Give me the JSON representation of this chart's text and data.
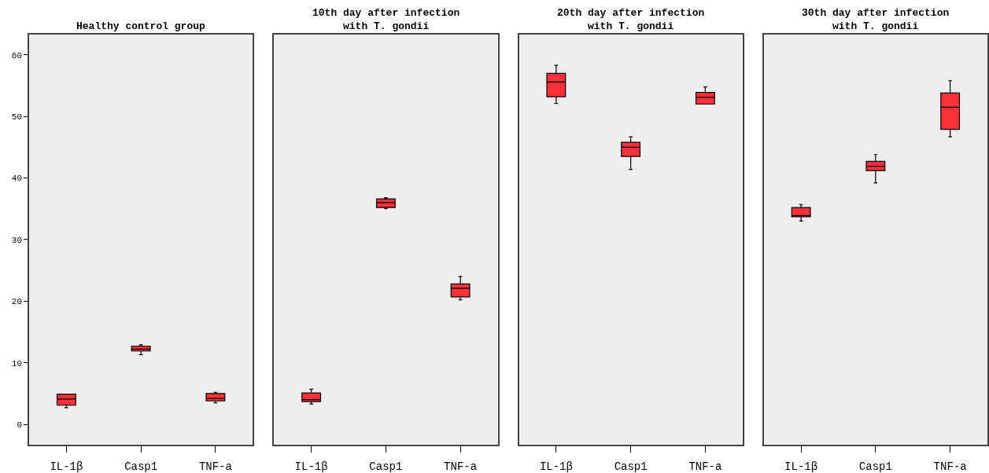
{
  "chart_data": [
    {
      "type": "box",
      "title": "Healthy control group",
      "categories": [
        "IL-1β",
        "Casp1",
        "TNF-a"
      ],
      "color": "#f8313a",
      "ylim": [
        -3.3,
        63.3
      ],
      "yticks": [
        0,
        10,
        20,
        30,
        40,
        50,
        60
      ],
      "grid": false,
      "boxes": [
        {
          "low": 2.7,
          "q1": 3.1,
          "median": 4.1,
          "q3": 4.9,
          "high": 4.9
        },
        {
          "low": 11.3,
          "q1": 11.9,
          "median": 12.2,
          "q3": 12.7,
          "high": 12.9
        },
        {
          "low": 3.5,
          "q1": 3.8,
          "median": 4.2,
          "q3": 5.0,
          "high": 5.2
        }
      ]
    },
    {
      "type": "box",
      "title": "10th day after infection\nwith T. gondii",
      "categories": [
        "IL-1β",
        "Casp1",
        "TNF-a"
      ],
      "color": "#f8313a",
      "ylim": [
        -3.3,
        63.3
      ],
      "yticks": [
        0,
        10,
        20,
        30,
        40,
        50,
        60
      ],
      "grid": false,
      "tick_labels": "x",
      "boxes": [
        {
          "low": 3.3,
          "q1": 3.7,
          "median": 4.0,
          "q3": 5.1,
          "high": 5.7
        },
        {
          "low": 35.0,
          "q1": 35.2,
          "median": 36.0,
          "q3": 36.6,
          "high": 36.8
        },
        {
          "low": 20.2,
          "q1": 20.7,
          "median": 22.1,
          "q3": 22.8,
          "high": 24.0
        }
      ]
    },
    {
      "type": "box",
      "title": "20th day after infection\nwith T. gondii",
      "categories": [
        "IL-1β",
        "Casp1",
        "TNF-a"
      ],
      "color": "#f8313a",
      "ylim": [
        -3.3,
        63.3
      ],
      "yticks": [
        0,
        10,
        20,
        30,
        40,
        50,
        60
      ],
      "grid": false,
      "tick_labels": "x",
      "boxes": [
        {
          "low": 52.1,
          "q1": 53.2,
          "median": 55.6,
          "q3": 57.0,
          "high": 58.3
        },
        {
          "low": 41.4,
          "q1": 43.5,
          "median": 45.0,
          "q3": 45.8,
          "high": 46.7
        },
        {
          "low": 52.0,
          "q1": 52.0,
          "median": 53.1,
          "q3": 53.9,
          "high": 54.8
        }
      ]
    },
    {
      "type": "box",
      "title": "30th day after infection\nwith T. gondii",
      "categories": [
        "IL-1β",
        "Casp1",
        "TNF-a"
      ],
      "color": "#f8313a",
      "ylim": [
        -3.3,
        63.3
      ],
      "yticks": [
        0,
        10,
        20,
        30,
        40,
        50,
        60
      ],
      "grid": false,
      "tick_labels": "x",
      "boxes": [
        {
          "low": 33.0,
          "q1": 33.7,
          "median": 33.9,
          "q3": 35.2,
          "high": 35.7
        },
        {
          "low": 39.2,
          "q1": 41.2,
          "median": 41.9,
          "q3": 42.7,
          "high": 43.8
        },
        {
          "low": 46.7,
          "q1": 47.9,
          "median": 51.5,
          "q3": 53.8,
          "high": 55.8
        }
      ]
    }
  ]
}
